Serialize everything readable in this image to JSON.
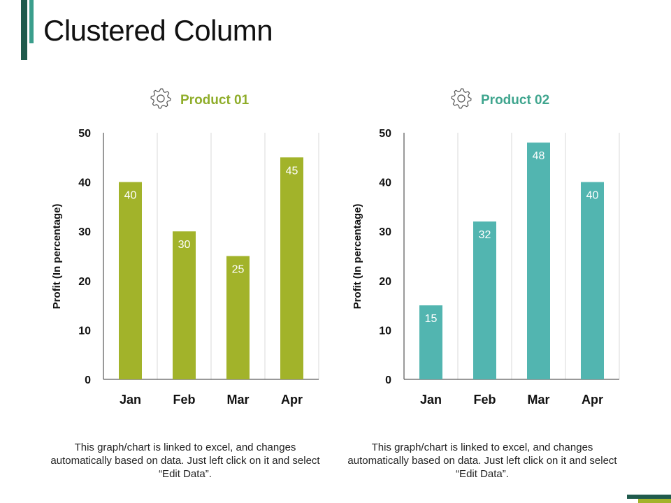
{
  "slide": {
    "title": "Clustered Column",
    "colors": {
      "accent_dark": "#1f5a4c",
      "accent_teal": "#3b9e8c",
      "accent_green": "#a2b32a"
    }
  },
  "captions": [
    "This graph/chart is linked to excel, and changes automatically based on data. Just left click on it and select “Edit Data”.",
    "This graph/chart is linked to excel, and changes automatically based on data. Just left click on it and select “Edit Data”."
  ],
  "chart_data": [
    {
      "type": "bar",
      "title": "Product 01",
      "title_color": "#8fad2a",
      "icon": "gear-icon",
      "categories": [
        "Jan",
        "Feb",
        "Mar",
        "Apr"
      ],
      "values": [
        40,
        30,
        25,
        45
      ],
      "bar_color": "#a2b32a",
      "xlabel": "",
      "ylabel": "Profit (In percentage)",
      "ylim": [
        0,
        50
      ],
      "yticks": [
        0,
        10,
        20,
        30,
        40,
        50
      ],
      "grid": "vertical",
      "data_labels": true
    },
    {
      "type": "bar",
      "title": "Product 02",
      "title_color": "#3fa58e",
      "icon": "gear-icon",
      "categories": [
        "Jan",
        "Feb",
        "Mar",
        "Apr"
      ],
      "values": [
        15,
        32,
        48,
        40
      ],
      "bar_color": "#52b5b0",
      "xlabel": "",
      "ylabel": "Profit (In percentage)",
      "ylim": [
        0,
        50
      ],
      "yticks": [
        0,
        10,
        20,
        30,
        40,
        50
      ],
      "grid": "vertical",
      "data_labels": true
    }
  ]
}
